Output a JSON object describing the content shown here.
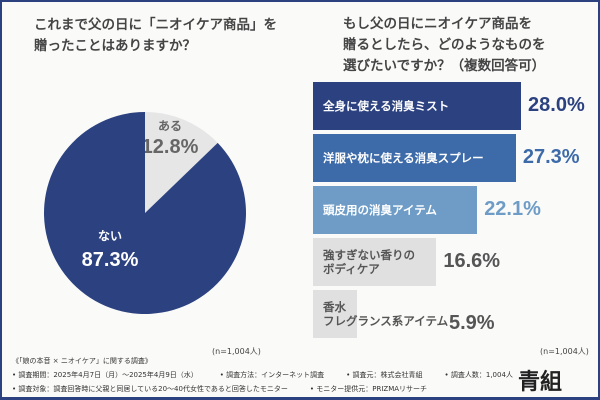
{
  "chart_data": [
    {
      "type": "pie",
      "title": [
        "これまで父の日に「ニオイケア商品」を",
        "贈ったことはありますか？"
      ],
      "slices": [
        {
          "label": "ある",
          "value": 12.8,
          "display": "12.8%",
          "color": "#e6e6e6"
        },
        {
          "label": "ない",
          "value": 87.3,
          "display": "87.3%",
          "color": "#2c4280"
        }
      ],
      "note": "(n=1,004人)"
    },
    {
      "type": "bar",
      "orientation": "horizontal",
      "title": [
        "もし父の日にニオイケア商品を",
        "贈るとしたら、どのようなものを",
        "選びたいですか？（複数回答可）"
      ],
      "categories": [
        [
          "全身に使える消臭ミスト"
        ],
        [
          "洋服や枕に使える消臭スプレー"
        ],
        [
          "頭皮用の消臭アイテム"
        ],
        [
          "強すぎない香りの",
          "ボディケア"
        ],
        [
          "香水",
          "フレグランス系アイテム"
        ]
      ],
      "values": [
        28.0,
        27.3,
        22.1,
        16.6,
        5.9
      ],
      "display": [
        "28.0%",
        "27.3%",
        "22.1%",
        "16.6%",
        "5.9%"
      ],
      "colors": [
        "#2c4280",
        "#3d6aa8",
        "#6e9cc7",
        "#e0e0e0",
        "#e0e0e0"
      ],
      "value_colors": [
        "#2c4280",
        "#3d6aa8",
        "#6e9cc7",
        "#555555",
        "#555555"
      ],
      "note": "(n=1,004人)"
    }
  ],
  "footer": {
    "heading": "《「娘の本音 × ニオイケア」に関する調査》",
    "line1": [
      "• 調査期間：2025年4月7日（月）〜2025年4月9日（水）",
      "• 調査方法：インターネット調査",
      "• 調査元：株式会社青組",
      "• 調査人数：1,004人"
    ],
    "line2": [
      "• 調査対象：調査回答時に父親と同居している20〜40代女性であると回答したモニター",
      "• モニター提供元：PRIZMAリサーチ"
    ],
    "logo": "青組"
  }
}
